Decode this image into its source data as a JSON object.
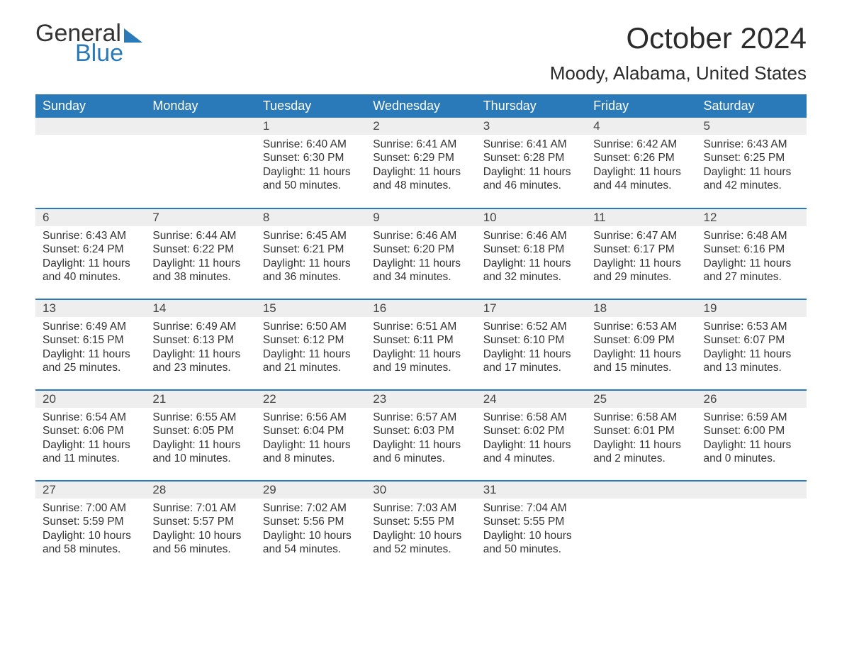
{
  "logo": {
    "line1": "General",
    "line2": "Blue"
  },
  "title": "October 2024",
  "location": "Moody, Alabama, United States",
  "colors": {
    "header_bg": "#2a7ab9",
    "header_text": "#ffffff",
    "daynum_bg": "#eeeeee",
    "row_border": "#2a7ab9",
    "text": "#333333",
    "background": "#ffffff"
  },
  "typography": {
    "title_size": 42,
    "location_size": 26,
    "header_size": 18,
    "body_size": 15.5
  },
  "day_names": [
    "Sunday",
    "Monday",
    "Tuesday",
    "Wednesday",
    "Thursday",
    "Friday",
    "Saturday"
  ],
  "weeks": [
    [
      null,
      null,
      {
        "n": "1",
        "sr": "6:40 AM",
        "ss": "6:30 PM",
        "dl": "11 hours and 50 minutes."
      },
      {
        "n": "2",
        "sr": "6:41 AM",
        "ss": "6:29 PM",
        "dl": "11 hours and 48 minutes."
      },
      {
        "n": "3",
        "sr": "6:41 AM",
        "ss": "6:28 PM",
        "dl": "11 hours and 46 minutes."
      },
      {
        "n": "4",
        "sr": "6:42 AM",
        "ss": "6:26 PM",
        "dl": "11 hours and 44 minutes."
      },
      {
        "n": "5",
        "sr": "6:43 AM",
        "ss": "6:25 PM",
        "dl": "11 hours and 42 minutes."
      }
    ],
    [
      {
        "n": "6",
        "sr": "6:43 AM",
        "ss": "6:24 PM",
        "dl": "11 hours and 40 minutes."
      },
      {
        "n": "7",
        "sr": "6:44 AM",
        "ss": "6:22 PM",
        "dl": "11 hours and 38 minutes."
      },
      {
        "n": "8",
        "sr": "6:45 AM",
        "ss": "6:21 PM",
        "dl": "11 hours and 36 minutes."
      },
      {
        "n": "9",
        "sr": "6:46 AM",
        "ss": "6:20 PM",
        "dl": "11 hours and 34 minutes."
      },
      {
        "n": "10",
        "sr": "6:46 AM",
        "ss": "6:18 PM",
        "dl": "11 hours and 32 minutes."
      },
      {
        "n": "11",
        "sr": "6:47 AM",
        "ss": "6:17 PM",
        "dl": "11 hours and 29 minutes."
      },
      {
        "n": "12",
        "sr": "6:48 AM",
        "ss": "6:16 PM",
        "dl": "11 hours and 27 minutes."
      }
    ],
    [
      {
        "n": "13",
        "sr": "6:49 AM",
        "ss": "6:15 PM",
        "dl": "11 hours and 25 minutes."
      },
      {
        "n": "14",
        "sr": "6:49 AM",
        "ss": "6:13 PM",
        "dl": "11 hours and 23 minutes."
      },
      {
        "n": "15",
        "sr": "6:50 AM",
        "ss": "6:12 PM",
        "dl": "11 hours and 21 minutes."
      },
      {
        "n": "16",
        "sr": "6:51 AM",
        "ss": "6:11 PM",
        "dl": "11 hours and 19 minutes."
      },
      {
        "n": "17",
        "sr": "6:52 AM",
        "ss": "6:10 PM",
        "dl": "11 hours and 17 minutes."
      },
      {
        "n": "18",
        "sr": "6:53 AM",
        "ss": "6:09 PM",
        "dl": "11 hours and 15 minutes."
      },
      {
        "n": "19",
        "sr": "6:53 AM",
        "ss": "6:07 PM",
        "dl": "11 hours and 13 minutes."
      }
    ],
    [
      {
        "n": "20",
        "sr": "6:54 AM",
        "ss": "6:06 PM",
        "dl": "11 hours and 11 minutes."
      },
      {
        "n": "21",
        "sr": "6:55 AM",
        "ss": "6:05 PM",
        "dl": "11 hours and 10 minutes."
      },
      {
        "n": "22",
        "sr": "6:56 AM",
        "ss": "6:04 PM",
        "dl": "11 hours and 8 minutes."
      },
      {
        "n": "23",
        "sr": "6:57 AM",
        "ss": "6:03 PM",
        "dl": "11 hours and 6 minutes."
      },
      {
        "n": "24",
        "sr": "6:58 AM",
        "ss": "6:02 PM",
        "dl": "11 hours and 4 minutes."
      },
      {
        "n": "25",
        "sr": "6:58 AM",
        "ss": "6:01 PM",
        "dl": "11 hours and 2 minutes."
      },
      {
        "n": "26",
        "sr": "6:59 AM",
        "ss": "6:00 PM",
        "dl": "11 hours and 0 minutes."
      }
    ],
    [
      {
        "n": "27",
        "sr": "7:00 AM",
        "ss": "5:59 PM",
        "dl": "10 hours and 58 minutes."
      },
      {
        "n": "28",
        "sr": "7:01 AM",
        "ss": "5:57 PM",
        "dl": "10 hours and 56 minutes."
      },
      {
        "n": "29",
        "sr": "7:02 AM",
        "ss": "5:56 PM",
        "dl": "10 hours and 54 minutes."
      },
      {
        "n": "30",
        "sr": "7:03 AM",
        "ss": "5:55 PM",
        "dl": "10 hours and 52 minutes."
      },
      {
        "n": "31",
        "sr": "7:04 AM",
        "ss": "5:55 PM",
        "dl": "10 hours and 50 minutes."
      },
      null,
      null
    ]
  ],
  "labels": {
    "sunrise": "Sunrise:",
    "sunset": "Sunset:",
    "daylight": "Daylight:"
  }
}
